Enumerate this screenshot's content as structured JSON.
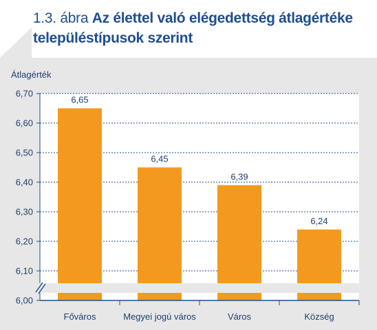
{
  "figure": {
    "number": "1.3. ábra",
    "title": "Az élettel való elégedettség átlagértéke településtípusok szerint"
  },
  "chart_data": {
    "type": "bar",
    "title": "Az élettel való elégedettség átlagértéke településtípusok szerint",
    "xlabel": "",
    "ylabel": "Átlagérték",
    "categories": [
      "Főváros",
      "Megyei jogú város",
      "Város",
      "Község"
    ],
    "values": [
      6.65,
      6.45,
      6.39,
      6.24
    ],
    "value_labels": [
      "6,65",
      "6,45",
      "6,39",
      "6,24"
    ],
    "ylim": [
      6.0,
      6.7
    ],
    "yticks": [
      6.0,
      6.1,
      6.2,
      6.3,
      6.4,
      6.5,
      6.6,
      6.7
    ],
    "ytick_labels": [
      "6,00",
      "6,10",
      "6,20",
      "6,30",
      "6,40",
      "6,50",
      "6,60",
      "6,70"
    ],
    "axis_break": true,
    "grid": true,
    "colors": {
      "bar": "#f39a1e",
      "axis": "#1f4e8f",
      "grid": "#1f4e8f",
      "plot_bg": "#ffffff",
      "panel_bg": "#e7e7e7",
      "title": "#1f4e8f"
    }
  }
}
